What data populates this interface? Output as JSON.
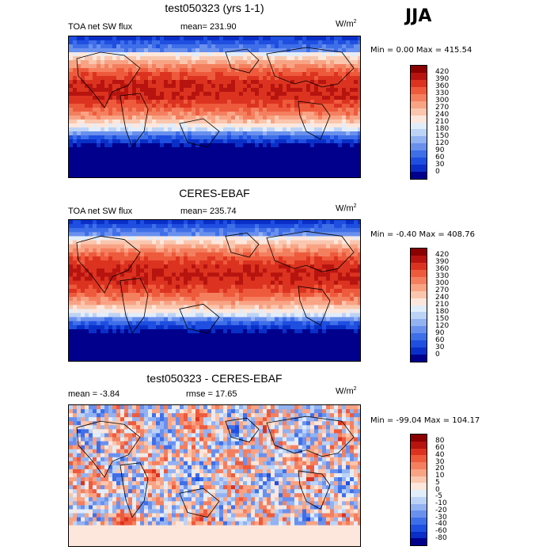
{
  "season": "JJA",
  "unit_base": "W/m",
  "unit_exp": "2",
  "panels": [
    {
      "title": "test050323 (yrs 1-1)",
      "left_label": "TOA net SW flux",
      "mid_label": "mean= 231.90",
      "minmax": "Min =    0.00 Max = 415.54",
      "colorbar": [
        "420",
        "390",
        "360",
        "330",
        "300",
        "270",
        "240",
        "210",
        "180",
        "150",
        "120",
        "90",
        "60",
        "30",
        "0"
      ]
    },
    {
      "title": "CERES-EBAF",
      "left_label": "TOA net SW flux",
      "mid_label": "mean= 235.74",
      "minmax": "Min =  -0.40 Max = 408.76",
      "colorbar": [
        "420",
        "390",
        "360",
        "330",
        "300",
        "270",
        "240",
        "210",
        "180",
        "150",
        "120",
        "90",
        "60",
        "30",
        "0"
      ]
    },
    {
      "title": "test050323 - CERES-EBAF",
      "left_label": "mean =   -3.84",
      "mid_label": "rmse =   17.65",
      "minmax": "Min = -99.04 Max = 104.17",
      "colorbar": [
        "80",
        "60",
        "40",
        "30",
        "20",
        "10",
        "5",
        "0",
        "-5",
        "-10",
        "-20",
        "-30",
        "-40",
        "-60",
        "-80"
      ]
    }
  ],
  "chart_data": [
    {
      "type": "heatmap",
      "title": "test050323 (yrs 1-1)",
      "variable": "TOA net SW flux",
      "units": "W/m^2",
      "mean": 231.9,
      "min": 0.0,
      "max": 415.54,
      "color_levels": [
        0,
        30,
        60,
        90,
        120,
        150,
        180,
        210,
        240,
        270,
        300,
        330,
        360,
        390,
        420
      ],
      "palette": [
        "#00008c",
        "#0a2fc8",
        "#1f4fe0",
        "#3f6fe8",
        "#6a90ee",
        "#93b2f2",
        "#bcd3f6",
        "#e2edfa",
        "#fde7dc",
        "#fac6ae",
        "#f8a384",
        "#f47f5f",
        "#ee5a3c",
        "#dc3320",
        "#b71410",
        "#8b0000"
      ]
    },
    {
      "type": "heatmap",
      "title": "CERES-EBAF",
      "variable": "TOA net SW flux",
      "units": "W/m^2",
      "mean": 235.74,
      "min": -0.4,
      "max": 408.76,
      "color_levels": [
        0,
        30,
        60,
        90,
        120,
        150,
        180,
        210,
        240,
        270,
        300,
        330,
        360,
        390,
        420
      ],
      "palette": [
        "#00008c",
        "#0a2fc8",
        "#1f4fe0",
        "#3f6fe8",
        "#6a90ee",
        "#93b2f2",
        "#bcd3f6",
        "#e2edfa",
        "#fde7dc",
        "#fac6ae",
        "#f8a384",
        "#f47f5f",
        "#ee5a3c",
        "#dc3320",
        "#b71410",
        "#8b0000"
      ]
    },
    {
      "type": "heatmap",
      "title": "test050323 - CERES-EBAF",
      "units": "W/m^2",
      "mean": -3.84,
      "rmse": 17.65,
      "min": -99.04,
      "max": 104.17,
      "color_levels": [
        -80,
        -60,
        -40,
        -30,
        -20,
        -10,
        -5,
        0,
        5,
        10,
        20,
        30,
        40,
        60,
        80
      ],
      "palette": [
        "#00008c",
        "#0a2fc8",
        "#1f4fe0",
        "#3f6fe8",
        "#6a90ee",
        "#93b2f2",
        "#bcd3f6",
        "#e2edfa",
        "#fde7dc",
        "#fac6ae",
        "#f8a384",
        "#f47f5f",
        "#ee5a3c",
        "#dc3320",
        "#b71410",
        "#8b0000"
      ]
    }
  ]
}
